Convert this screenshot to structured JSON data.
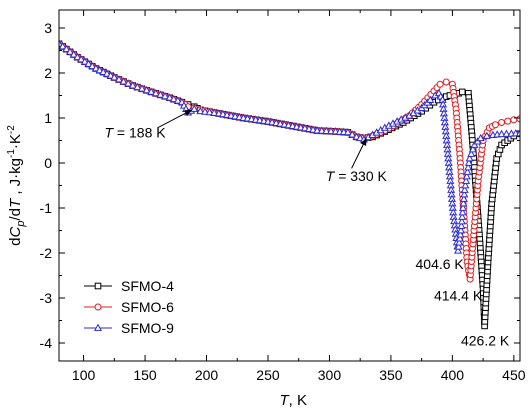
{
  "chart_data": {
    "type": "line",
    "xlabel_var": "T",
    "xlabel_unit": ", K",
    "ylabel_text": "dCp/dT , J·kg-1·K-2",
    "xlim": [
      80,
      455
    ],
    "ylim": [
      -4.4,
      3.4
    ],
    "x_ticks": [
      100,
      150,
      200,
      250,
      300,
      350,
      400,
      450
    ],
    "y_ticks": [
      3,
      2,
      1,
      0,
      -1,
      -2,
      -3,
      -4
    ],
    "legend_position": "bottom-left",
    "series": [
      {
        "name": "SFMO-4",
        "color": "#000000",
        "marker": "square",
        "x": [
          80,
          95,
          110,
          125,
          140,
          155,
          170,
          180,
          185,
          190,
          195,
          210,
          230,
          250,
          270,
          290,
          305,
          315,
          322,
          328,
          335,
          345,
          360,
          375,
          385,
          392,
          398,
          402,
          408,
          413,
          416,
          419,
          422,
          425,
          426.2,
          429,
          432,
          436,
          440,
          445,
          450,
          455
        ],
        "y": [
          2.65,
          2.35,
          2.1,
          1.9,
          1.72,
          1.58,
          1.45,
          1.35,
          1.3,
          1.25,
          1.18,
          1.1,
          1.0,
          0.92,
          0.82,
          0.72,
          0.7,
          0.68,
          0.58,
          0.55,
          0.58,
          0.7,
          0.9,
          1.15,
          1.35,
          1.45,
          1.5,
          1.52,
          1.58,
          1.55,
          0.6,
          -0.5,
          -1.6,
          -2.8,
          -3.62,
          -2.2,
          -0.9,
          0.1,
          0.4,
          0.5,
          0.6,
          0.65
        ]
      },
      {
        "name": "SFMO-6",
        "color": "#e41a1c",
        "marker": "circle",
        "x": [
          80,
          95,
          110,
          125,
          140,
          155,
          170,
          180,
          185,
          190,
          195,
          210,
          230,
          250,
          270,
          290,
          305,
          315,
          322,
          328,
          335,
          345,
          355,
          365,
          375,
          385,
          390,
          395,
          400,
          403,
          406,
          409,
          412,
          414.4,
          417,
          421,
          425,
          430,
          435,
          440,
          445,
          450,
          455
        ],
        "y": [
          2.65,
          2.35,
          2.1,
          1.9,
          1.72,
          1.58,
          1.45,
          1.35,
          1.25,
          1.22,
          1.18,
          1.1,
          1.0,
          0.92,
          0.82,
          0.72,
          0.7,
          0.68,
          0.58,
          0.55,
          0.6,
          0.72,
          0.88,
          1.05,
          1.3,
          1.6,
          1.75,
          1.8,
          1.75,
          1.2,
          0.2,
          -1.0,
          -2.2,
          -2.58,
          -1.7,
          -0.4,
          0.5,
          0.78,
          0.85,
          0.9,
          0.93,
          0.96,
          0.98
        ]
      },
      {
        "name": "SFMO-9",
        "color": "#2b2bd4",
        "marker": "triangle",
        "x": [
          80,
          95,
          110,
          125,
          140,
          155,
          170,
          180,
          185,
          190,
          195,
          210,
          230,
          250,
          270,
          290,
          305,
          315,
          322,
          328,
          335,
          345,
          355,
          365,
          375,
          382,
          386,
          389,
          392,
          395,
          398,
          401,
          404.6,
          407,
          410,
          414,
          418,
          423,
          428,
          433,
          440,
          448,
          455
        ],
        "y": [
          2.65,
          2.35,
          2.1,
          1.9,
          1.72,
          1.58,
          1.45,
          1.35,
          1.12,
          1.2,
          1.15,
          1.1,
          1.0,
          0.92,
          0.82,
          0.72,
          0.7,
          0.68,
          0.58,
          0.52,
          0.62,
          0.78,
          0.92,
          1.05,
          1.22,
          1.4,
          1.5,
          1.55,
          1.4,
          0.6,
          -0.3,
          -1.2,
          -1.95,
          -1.5,
          -0.6,
          0.1,
          0.4,
          0.55,
          0.6,
          0.62,
          0.64,
          0.65,
          0.66
        ]
      }
    ],
    "annotations": [
      {
        "var": "T",
        "value_text": " = 188 K",
        "label_x": 117,
        "label_y": 0.57,
        "arrow_from": [
          160,
          0.78
        ],
        "arrow_to": [
          188,
          1.18
        ]
      },
      {
        "var": "T",
        "value_text": " = 330 K",
        "label_x": 297,
        "label_y": -0.4,
        "arrow_from": [
          318,
          -0.12
        ],
        "arrow_to": [
          330,
          0.55
        ]
      },
      {
        "var": "",
        "value_text": "404.6 K",
        "label_x": 370,
        "label_y": -2.35,
        "arrow_from": null,
        "arrow_to": null
      },
      {
        "var": "",
        "value_text": "414.4 K",
        "label_x": 385,
        "label_y": -3.05,
        "arrow_from": null,
        "arrow_to": null
      },
      {
        "var": "",
        "value_text": "426.2 K",
        "label_x": 407,
        "label_y": -4.05,
        "arrow_from": null,
        "arrow_to": null
      }
    ]
  }
}
